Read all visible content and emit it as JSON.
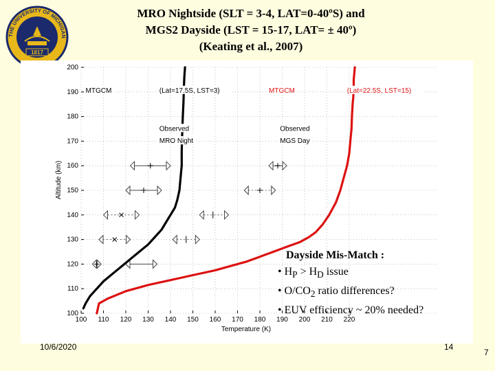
{
  "slide": {
    "title_line1": "MRO Nightside (SLT = 3-4, LAT=0-40ºS) and",
    "title_line2": "MGS2 Dayside (LST = 15-17, LAT= ± 40º)",
    "title_line3": "(Keating et al., 2007)",
    "footer_date": "10/6/2020",
    "footer_page": "14",
    "footer_slide_number": "7",
    "logo_text_top": "THE UNIVERSITY OF MICHIGAN",
    "logo_year": "1817",
    "logo_color": "#1a2a6c",
    "logo_accent": "#e8b81a"
  },
  "annotation": {
    "heading": "Dayside Mis-Match :",
    "bullet1_a": "• H",
    "bullet1_sub_a": "P",
    "bullet1_b": " > H",
    "bullet1_sub_b": "D",
    "bullet1_c": "   issue",
    "bullet2_a": "• O/CO",
    "bullet2_sub": "2",
    "bullet2_b": "  ratio differences?",
    "bullet3": "• EUV efficiency ~ 20% needed?"
  },
  "chart_data": {
    "type": "line",
    "xlabel": "Temperature (K)",
    "ylabel": "Altitude (km)",
    "xlim": [
      100,
      260
    ],
    "ylim": [
      100,
      200
    ],
    "xticks": [
      100,
      110,
      120,
      130,
      140,
      150,
      160,
      170,
      180,
      190,
      200,
      210,
      220
    ],
    "yticks": [
      100,
      110,
      120,
      130,
      140,
      150,
      160,
      170,
      180,
      190,
      200
    ],
    "series": [
      {
        "name": "MTGCM (Lat=17.5S, LST=3)",
        "color": "#000000",
        "x": [
          101,
          102,
          104,
          107,
          110,
          114,
          118,
          122,
          126,
          130,
          133,
          136,
          138,
          140,
          142,
          143,
          144,
          144.5,
          145,
          145,
          145.2,
          145.5,
          145.8,
          146,
          146.2,
          146.5
        ],
        "y": [
          102,
          104,
          107,
          110,
          113,
          116,
          119,
          122,
          125,
          128,
          131,
          134,
          137,
          140,
          143,
          146,
          150,
          155,
          160,
          166,
          172,
          180,
          186,
          192,
          196,
          200
        ]
      },
      {
        "name": "MTGCM (Lat=22.5S, LST=15)",
        "color": "#dd1111",
        "x": [
          107,
          107.5,
          108,
          112,
          120,
          130,
          140,
          150,
          160,
          168,
          174,
          180,
          186,
          192,
          198,
          202,
          205,
          208,
          211,
          214,
          216,
          217.5,
          219,
          220,
          220.5,
          221,
          221.2,
          221.5,
          221.8,
          222,
          222,
          222.3,
          222.5
        ],
        "y": [
          100,
          102,
          104,
          106,
          109,
          111.5,
          113.5,
          115.5,
          117.5,
          119.5,
          121,
          123,
          125,
          127,
          129,
          131,
          133,
          136,
          140,
          145,
          150,
          155,
          160,
          165,
          170,
          175,
          180,
          185,
          188,
          192,
          195,
          198,
          200
        ]
      }
    ],
    "labels": [
      {
        "text": "MTGCM",
        "x": 102,
        "y": 190,
        "color": "#000000"
      },
      {
        "text": "(Lat=17.5S, LST=3)",
        "x": 135,
        "y": 190,
        "color": "#000000"
      },
      {
        "text": "MTGCM",
        "x": 184,
        "y": 190,
        "color": "#dd1111"
      },
      {
        "text": "(Lat=22.5S, LST=15)",
        "x": 219,
        "y": 190,
        "color": "#dd1111"
      },
      {
        "text": "Observed",
        "x": 135,
        "y": 174.5,
        "color": "#000000"
      },
      {
        "text": "MRO Night",
        "x": 135,
        "y": 169.5,
        "color": "#000000"
      },
      {
        "text": "Observed",
        "x": 189,
        "y": 174.5,
        "color": "#000000"
      },
      {
        "text": "MGS Day",
        "x": 189,
        "y": 169.5,
        "color": "#000000"
      }
    ],
    "observations": [
      {
        "set": "MRO Night",
        "alt": 160,
        "T": 131,
        "lo": 122,
        "hi": 140,
        "mark": "+",
        "dashed": false
      },
      {
        "set": "MRO Night",
        "alt": 150,
        "T": 128,
        "lo": 120,
        "hi": 136,
        "mark": "+",
        "dashed": false
      },
      {
        "set": "MRO Night",
        "alt": 140,
        "T": 118,
        "lo": 110,
        "hi": 126,
        "mark": "x",
        "dashed": true
      },
      {
        "set": "MRO Night",
        "alt": 130,
        "T": 115,
        "lo": 108,
        "hi": 122,
        "mark": "x",
        "dashed": true
      },
      {
        "set": "MRO Night",
        "alt": 120,
        "T": 107,
        "lo": 105,
        "hi": 109,
        "mark": "+",
        "dashed": false
      },
      {
        "set": "MRO Night",
        "alt": 120,
        "T": 123,
        "lo": 120,
        "hi": 134,
        "mark": "",
        "dashed": false
      },
      {
        "set": "MGS Day",
        "alt": 160,
        "T": 188,
        "lo": 184,
        "hi": 192,
        "mark": "+",
        "dashed": false
      },
      {
        "set": "MGS Day",
        "alt": 150,
        "T": 180,
        "lo": 173,
        "hi": 187,
        "mark": "+",
        "dashed": true
      },
      {
        "set": "MGS Day",
        "alt": 140,
        "T": 159,
        "lo": 153,
        "hi": 166,
        "mark": "|",
        "dashed": true
      },
      {
        "set": "MGS Day",
        "alt": 130,
        "T": 147,
        "lo": 141,
        "hi": 153,
        "mark": "|",
        "dashed": true
      }
    ]
  }
}
